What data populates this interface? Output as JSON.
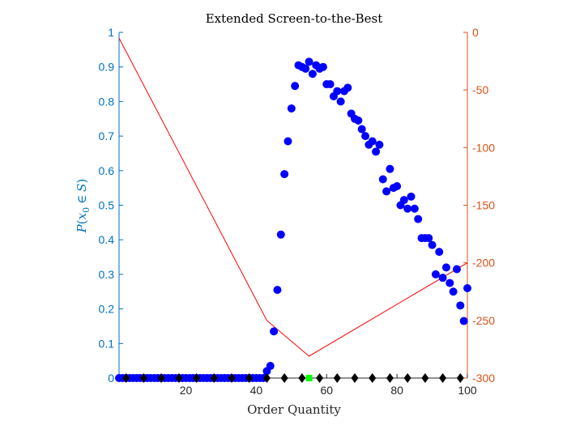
{
  "chart_data": {
    "type": "scatter",
    "title": "Extended Screen-to-the-Best",
    "xlabel": "Order Quantity",
    "ylabel_left": "P(x0 ∈ S)",
    "ylabel_left_parts": {
      "p": "P",
      "x": "x",
      "sub": "0",
      "in": "∈",
      "s": "S"
    },
    "xlim": [
      1,
      100
    ],
    "ylim_left": [
      0,
      1
    ],
    "ylim_right": [
      -300,
      0
    ],
    "x_ticks": [
      20,
      40,
      60,
      80,
      100
    ],
    "y_ticks_left": [
      0,
      0.1,
      0.2,
      0.3,
      0.4,
      0.5,
      0.6,
      0.7,
      0.8,
      0.9,
      1
    ],
    "y_ticks_right": [
      -300,
      -250,
      -200,
      -150,
      -100,
      -50,
      0
    ],
    "x_tick_labels": [
      "20",
      "40",
      "60",
      "80",
      "100"
    ],
    "y_tick_labels_left": [
      "0",
      "0.1",
      "0.2",
      "0.3",
      "0.4",
      "0.5",
      "0.6",
      "0.7",
      "0.8",
      "0.9",
      "1"
    ],
    "y_tick_labels_right": [
      "-300",
      "-250",
      "-200",
      "-150",
      "-100",
      "-50",
      "0"
    ],
    "colors": {
      "left_axis": "#0072BD",
      "right_axis": "#D95319",
      "probability_points": "#0000FF",
      "objective_curve": "#FF0000",
      "screened_markers": "#000000",
      "best_point": "#00FF00"
    },
    "series": [
      {
        "type": "scatter",
        "axis": "left",
        "x": [
          1,
          2,
          3,
          4,
          5,
          6,
          7,
          8,
          9,
          10,
          11,
          12,
          13,
          14,
          15,
          16,
          17,
          18,
          19,
          20,
          21,
          22,
          23,
          24,
          25,
          26,
          27,
          28,
          29,
          30,
          31,
          32,
          33,
          34,
          35,
          36,
          37,
          38,
          39,
          40,
          41,
          42,
          43,
          44,
          45,
          46,
          47,
          48,
          49,
          50,
          51,
          52,
          53,
          54,
          55,
          56,
          57,
          58,
          59,
          60,
          61,
          62,
          63,
          64,
          65,
          66,
          67,
          68,
          69,
          70,
          71,
          72,
          73,
          74,
          75,
          76,
          77,
          78,
          79,
          80,
          81,
          82,
          83,
          84,
          85,
          86,
          87,
          88,
          89,
          90,
          91,
          92,
          93,
          94,
          95,
          96,
          97,
          98,
          99,
          100
        ],
        "values": [
          0,
          0,
          0,
          0,
          0,
          0,
          0,
          0,
          0,
          0,
          0,
          0,
          0,
          0,
          0,
          0,
          0,
          0,
          0,
          0,
          0,
          0,
          0,
          0,
          0,
          0,
          0,
          0,
          0,
          0,
          0,
          0,
          0,
          0,
          0,
          0,
          0,
          0,
          0,
          0,
          0,
          0,
          0.02,
          0.035,
          0.135,
          0.255,
          0.415,
          0.59,
          0.685,
          0.78,
          0.845,
          0.905,
          0.9,
          0.895,
          0.915,
          0.88,
          0.905,
          0.895,
          0.9,
          0.85,
          0.85,
          0.815,
          0.83,
          0.8,
          0.83,
          0.84,
          0.765,
          0.75,
          0.745,
          0.72,
          0.7,
          0.675,
          0.685,
          0.655,
          0.675,
          0.575,
          0.54,
          0.605,
          0.55,
          0.555,
          0.5,
          0.515,
          0.49,
          0.525,
          0.49,
          0.46,
          0.405,
          0.405,
          0.405,
          0.385,
          0.3,
          0.365,
          0.29,
          0.32,
          0.275,
          0.25,
          0.315,
          0.21,
          0.165,
          0.26
        ]
      },
      {
        "type": "line",
        "axis": "right",
        "x": [
          1,
          43,
          55,
          100
        ],
        "values": [
          -5,
          -250,
          -281,
          -200
        ]
      },
      {
        "type": "marker",
        "axis": "left",
        "x": [
          3,
          8,
          13,
          18,
          23,
          28,
          33,
          38,
          43,
          48,
          53,
          58,
          63,
          68,
          73,
          78,
          83,
          88,
          93,
          98
        ],
        "values": [
          0,
          0,
          0,
          0,
          0,
          0,
          0,
          0,
          0,
          0,
          0,
          0,
          0,
          0,
          0,
          0,
          0,
          0,
          0,
          0
        ]
      },
      {
        "type": "marker",
        "axis": "left",
        "x": [
          55
        ],
        "values": [
          0
        ]
      }
    ]
  }
}
